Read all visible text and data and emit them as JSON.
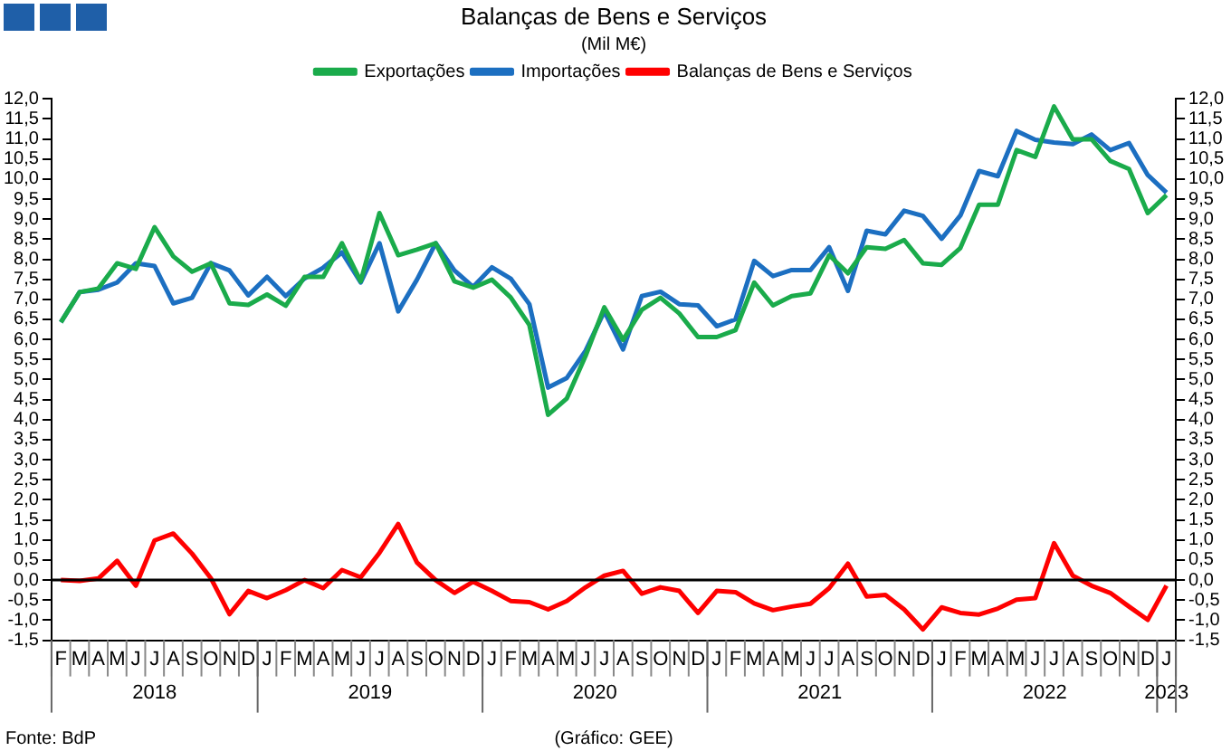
{
  "chart_data": {
    "type": "line",
    "title": "Balanças de Bens e Serviços",
    "subtitle": "(Mil M€)",
    "categories": [
      "F",
      "M",
      "A",
      "M",
      "J",
      "J",
      "A",
      "S",
      "O",
      "N",
      "D",
      "J",
      "F",
      "M",
      "A",
      "M",
      "J",
      "J",
      "A",
      "S",
      "O",
      "N",
      "D",
      "J",
      "F",
      "M",
      "A",
      "M",
      "J",
      "J",
      "A",
      "S",
      "O",
      "N",
      "D",
      "J",
      "F",
      "M",
      "A",
      "M",
      "J",
      "J",
      "A",
      "S",
      "O",
      "N",
      "D",
      "J",
      "F",
      "M",
      "A",
      "M",
      "J",
      "J",
      "A",
      "S",
      "O",
      "N",
      "D",
      "J"
    ],
    "series": [
      {
        "name": "Exportações",
        "color": "#1aab4b",
        "values": [
          6.43,
          7.18,
          7.27,
          7.9,
          7.76,
          8.8,
          8.07,
          7.69,
          7.9,
          6.9,
          6.86,
          7.12,
          6.84,
          7.56,
          7.56,
          8.4,
          7.45,
          9.15,
          8.1,
          8.24,
          8.4,
          7.45,
          7.29,
          7.49,
          7.05,
          6.36,
          4.12,
          4.53,
          5.59,
          6.8,
          5.99,
          6.74,
          7.04,
          6.65,
          6.06,
          6.06,
          6.23,
          7.42,
          6.85,
          7.08,
          7.15,
          8.1,
          7.65,
          8.3,
          8.26,
          8.48,
          7.9,
          7.86,
          8.28,
          9.36,
          9.36,
          10.72,
          10.55,
          11.81,
          10.99,
          10.99,
          10.45,
          10.25,
          9.15,
          9.6
        ]
      },
      {
        "name": "Importações",
        "color": "#1c6fc1",
        "values": [
          6.43,
          7.18,
          7.24,
          7.42,
          7.9,
          7.83,
          6.9,
          7.04,
          7.9,
          7.72,
          7.1,
          7.56,
          7.08,
          7.52,
          7.79,
          8.17,
          7.42,
          8.4,
          6.7,
          7.49,
          8.4,
          7.72,
          7.31,
          7.8,
          7.52,
          6.88,
          4.8,
          5.04,
          5.72,
          6.7,
          5.75,
          7.08,
          7.19,
          6.88,
          6.85,
          6.33,
          6.5,
          7.96,
          7.58,
          7.73,
          7.73,
          8.3,
          7.21,
          8.71,
          8.62,
          9.21,
          9.08,
          8.51,
          9.09,
          10.2,
          10.07,
          11.2,
          10.98,
          10.91,
          10.87,
          11.11,
          10.72,
          10.9,
          10.1,
          9.66
        ]
      },
      {
        "name": "Balanças de Bens e Serviços",
        "color": "#ff0000",
        "values": [
          0,
          -0.02,
          0.04,
          0.48,
          -0.14,
          0.99,
          1.16,
          0.66,
          0.05,
          -0.85,
          -0.27,
          -0.45,
          -0.25,
          0,
          -0.2,
          0.25,
          0.07,
          0.68,
          1.4,
          0.44,
          0,
          -0.32,
          -0.04,
          -0.27,
          -0.52,
          -0.55,
          -0.73,
          -0.52,
          -0.18,
          0.11,
          0.23,
          -0.34,
          -0.18,
          -0.27,
          -0.82,
          -0.27,
          -0.3,
          -0.58,
          -0.75,
          -0.66,
          -0.59,
          -0.2,
          0.41,
          -0.41,
          -0.37,
          -0.73,
          -1.23,
          -0.68,
          -0.82,
          -0.86,
          -0.71,
          -0.49,
          -0.45,
          0.92,
          0.11,
          -0.14,
          -0.32,
          -0.66,
          -0.99,
          -0.14
        ]
      }
    ],
    "ylim": [
      -1.5,
      12
    ],
    "yticks": [
      {
        "value": -1.5,
        "label": "-1,5"
      },
      {
        "value": -1,
        "label": "-1,0"
      },
      {
        "value": -0.5,
        "label": "-0,5"
      },
      {
        "value": 0,
        "label": "0,0"
      },
      {
        "value": 0.5,
        "label": "0,5"
      },
      {
        "value": 1,
        "label": "1,0"
      },
      {
        "value": 1.5,
        "label": "1,5"
      },
      {
        "value": 2,
        "label": "2,0"
      },
      {
        "value": 2.5,
        "label": "2,5"
      },
      {
        "value": 3,
        "label": "3,0"
      },
      {
        "value": 3.5,
        "label": "3,5"
      },
      {
        "value": 4,
        "label": "4,0"
      },
      {
        "value": 4.5,
        "label": "4,5"
      },
      {
        "value": 5,
        "label": "5,0"
      },
      {
        "value": 5.5,
        "label": "5,5"
      },
      {
        "value": 6,
        "label": "6,0"
      },
      {
        "value": 6.5,
        "label": "6,5"
      },
      {
        "value": 7,
        "label": "7,0"
      },
      {
        "value": 7.5,
        "label": "7,5"
      },
      {
        "value": 8,
        "label": "8,0"
      },
      {
        "value": 8.5,
        "label": "8,5"
      },
      {
        "value": 9,
        "label": "9,0"
      },
      {
        "value": 9.5,
        "label": "9,5"
      },
      {
        "value": 10,
        "label": "10,0"
      },
      {
        "value": 10.5,
        "label": "10,5"
      },
      {
        "value": 11,
        "label": "11,0"
      },
      {
        "value": 11.5,
        "label": "11,5"
      },
      {
        "value": 12,
        "label": "12,0"
      }
    ],
    "y2lim": [
      -1.5,
      12
    ],
    "y2ticks": [
      {
        "value": -1.5,
        "label": "-1,5"
      },
      {
        "value": -1,
        "label": "-1,0"
      },
      {
        "value": -0.5,
        "label": "-0,5"
      },
      {
        "value": 0,
        "label": "0,0"
      },
      {
        "value": 0.5,
        "label": "0,5"
      },
      {
        "value": 1,
        "label": "1,0"
      },
      {
        "value": 1.5,
        "label": "1,5"
      },
      {
        "value": 2,
        "label": "2,0"
      },
      {
        "value": 2.5,
        "label": "2,5"
      },
      {
        "value": 3,
        "label": "3,0"
      },
      {
        "value": 3.5,
        "label": "3,5"
      },
      {
        "value": 4,
        "label": "4,0"
      },
      {
        "value": 4.5,
        "label": "4,5"
      },
      {
        "value": 5,
        "label": "5,0"
      },
      {
        "value": 5.5,
        "label": "5,5"
      },
      {
        "value": 6,
        "label": "6,0"
      },
      {
        "value": 6.5,
        "label": "6,5"
      },
      {
        "value": 7,
        "label": "7,0"
      },
      {
        "value": 7.5,
        "label": "7,5"
      },
      {
        "value": 8,
        "label": "8,0"
      },
      {
        "value": 8.5,
        "label": "8,5"
      },
      {
        "value": 9,
        "label": "9,0"
      },
      {
        "value": 9.5,
        "label": "9,5"
      },
      {
        "value": 10,
        "label": "10,0"
      },
      {
        "value": 10.5,
        "label": "10,5"
      },
      {
        "value": 11,
        "label": "11,0"
      },
      {
        "value": 11.5,
        "label": "11,5"
      },
      {
        "value": 12,
        "label": "12,0"
      }
    ],
    "ref_lines": [
      {
        "axis": "y",
        "value": 0,
        "color": "#000000"
      }
    ],
    "annotations": [
      "2018",
      "2019",
      "2020",
      "2021",
      "2022",
      "2023",
      "Fonte: BdP",
      "(Gráfico: GEE)"
    ],
    "grid": false,
    "legend": "top",
    "marker": "none",
    "line_style": "solid"
  }
}
